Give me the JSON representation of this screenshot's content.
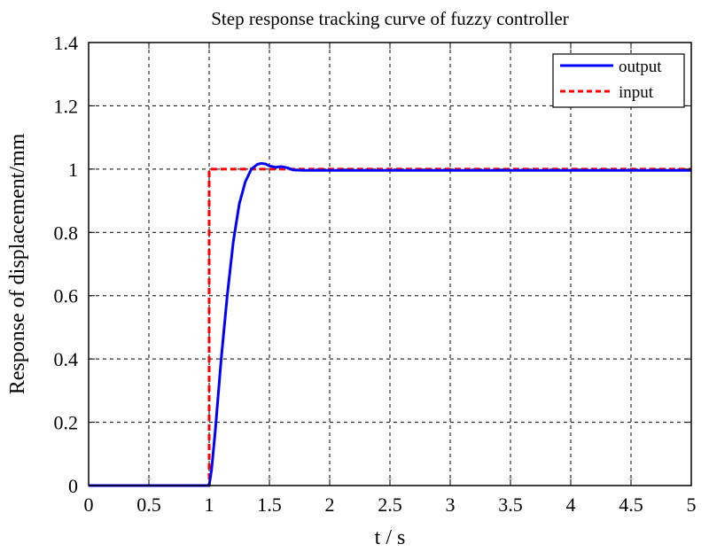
{
  "chart_data": {
    "type": "line",
    "title": "Step response tracking curve of fuzzy controller",
    "xlabel": "t / s",
    "ylabel": "Response of displacement/mm",
    "xlim": [
      0,
      5
    ],
    "ylim": [
      0,
      1.4
    ],
    "xticks": [
      "0",
      "0.5",
      "1",
      "1.5",
      "2",
      "2.5",
      "3",
      "3.5",
      "4",
      "4.5",
      "5"
    ],
    "yticks": [
      "0",
      "0.2",
      "0.4",
      "0.6",
      "0.8",
      "1",
      "1.2",
      "1.4"
    ],
    "grid": true,
    "legend_position": "top-right",
    "series": [
      {
        "name": "output",
        "color": "#0000ff",
        "style": "solid",
        "x": [
          0,
          1.0,
          1.02,
          1.05,
          1.1,
          1.15,
          1.2,
          1.25,
          1.3,
          1.35,
          1.4,
          1.43,
          1.47,
          1.5,
          1.55,
          1.6,
          1.65,
          1.7,
          1.8,
          2.0,
          3.0,
          4.0,
          5.0
        ],
        "y": [
          0,
          0,
          0.05,
          0.17,
          0.4,
          0.6,
          0.77,
          0.89,
          0.96,
          1.0,
          1.015,
          1.018,
          1.016,
          1.01,
          1.006,
          1.008,
          1.004,
          0.997,
          0.996,
          0.996,
          0.996,
          0.996,
          0.996
        ]
      },
      {
        "name": "input",
        "color": "#ff0000",
        "style": "dashed",
        "x": [
          0,
          1.0,
          1.0,
          5.0
        ],
        "y": [
          0,
          0,
          1.0,
          1.0
        ]
      }
    ]
  }
}
